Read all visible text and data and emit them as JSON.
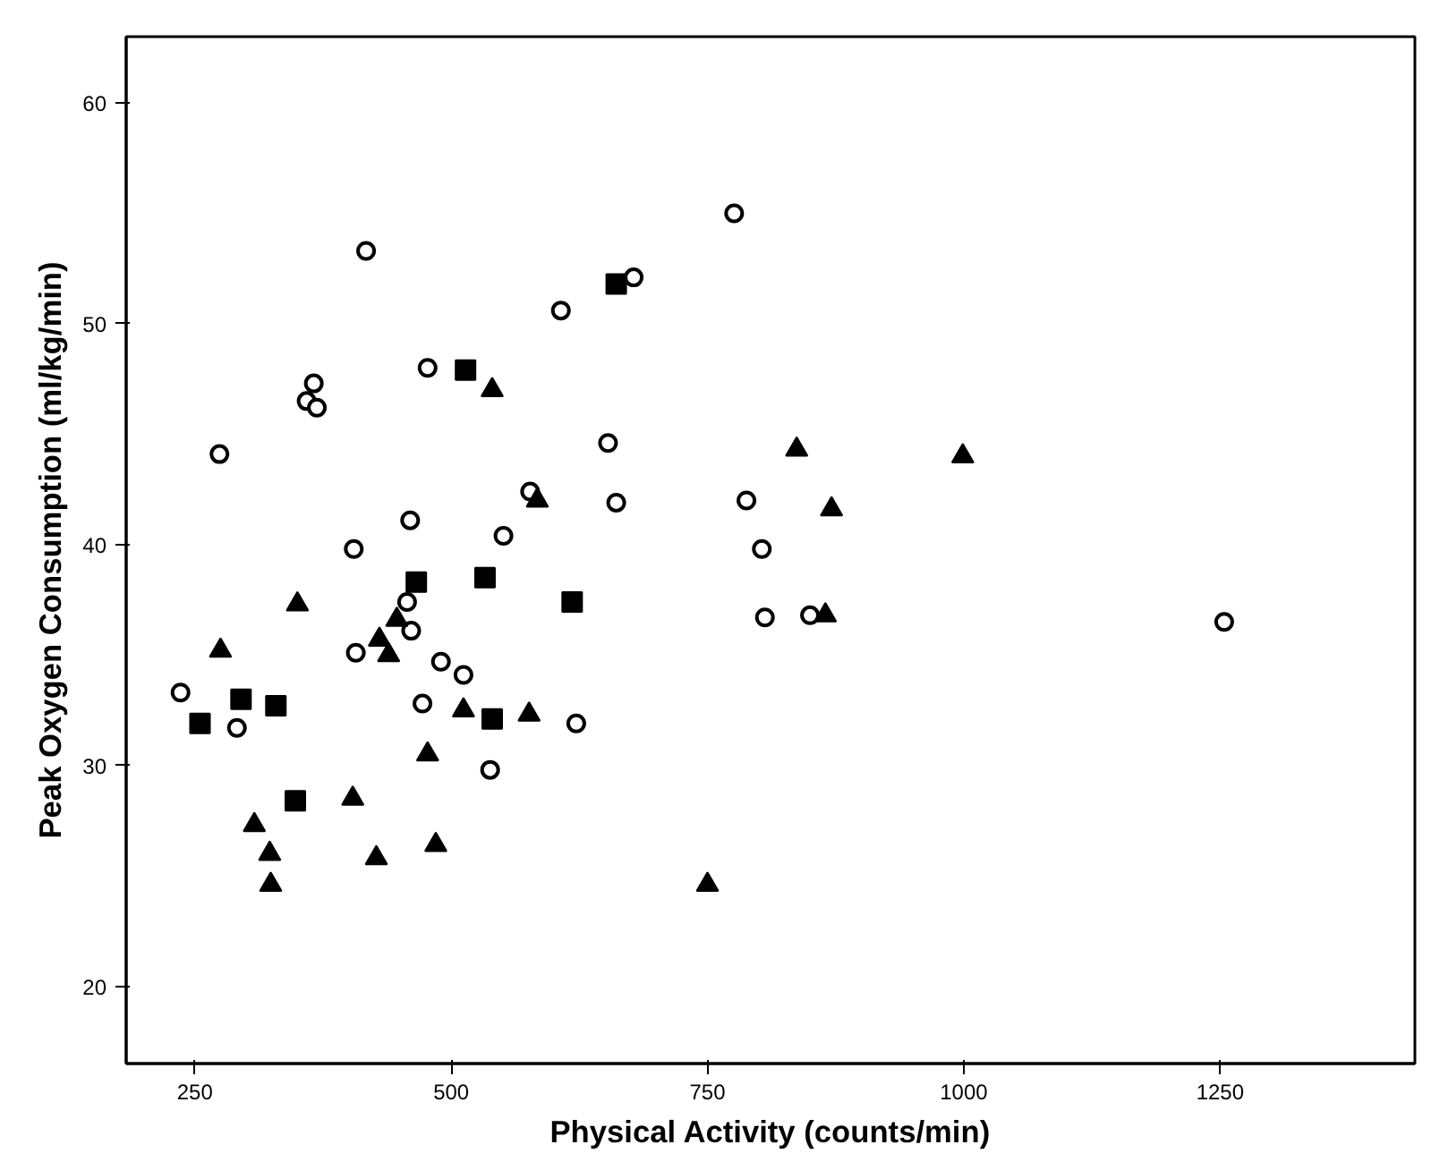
{
  "chart_data": {
    "type": "scatter",
    "xlabel": "Physical Activity (counts/min)",
    "ylabel": "Peak Oxygen Consumption (ml/kg/min)",
    "xlim": [
      183,
      1440
    ],
    "ylim": [
      16.5,
      63
    ],
    "xticks": [
      250,
      500,
      750,
      1000,
      1250
    ],
    "yticks": [
      20,
      30,
      40,
      50,
      60
    ],
    "grid": false,
    "series": [
      {
        "marker": "circle",
        "color": "#000000",
        "x": [
          776,
          417,
          678,
          607,
          477,
          366,
          359,
          369,
          274,
          653,
          577,
          661,
          788,
          460,
          551,
          405,
          803,
          457,
          461,
          407,
          490,
          512,
          236,
          472,
          291,
          622,
          538,
          806,
          850,
          1254
        ],
        "values": [
          55.0,
          53.3,
          52.1,
          50.6,
          48.0,
          47.3,
          46.5,
          46.2,
          44.1,
          44.6,
          42.4,
          41.9,
          42.0,
          41.1,
          40.4,
          39.8,
          39.8,
          37.4,
          36.1,
          35.1,
          34.7,
          34.1,
          33.3,
          32.8,
          31.7,
          31.9,
          29.8,
          36.7,
          36.8,
          36.5
        ]
      },
      {
        "marker": "triangle",
        "color": "#000000",
        "x": [
          350,
          275,
          447,
          430,
          439,
          512,
          576,
          477,
          404,
          308,
          323,
          324,
          427,
          485,
          865,
          750,
          540,
          584,
          837,
          871,
          999
        ],
        "values": [
          37.3,
          35.2,
          36.6,
          35.7,
          35.0,
          32.5,
          32.3,
          30.5,
          28.5,
          27.3,
          26.0,
          24.6,
          25.8,
          26.4,
          36.8,
          24.6,
          47.0,
          42.0,
          44.3,
          41.6,
          44.0
        ]
      },
      {
        "marker": "square",
        "color": "#000000",
        "x": [
          661,
          514,
          466,
          533,
          618,
          295,
          329,
          255,
          348,
          540
        ],
        "values": [
          51.8,
          47.9,
          38.3,
          38.5,
          37.4,
          33.0,
          32.7,
          31.9,
          28.4,
          32.1
        ]
      }
    ]
  }
}
